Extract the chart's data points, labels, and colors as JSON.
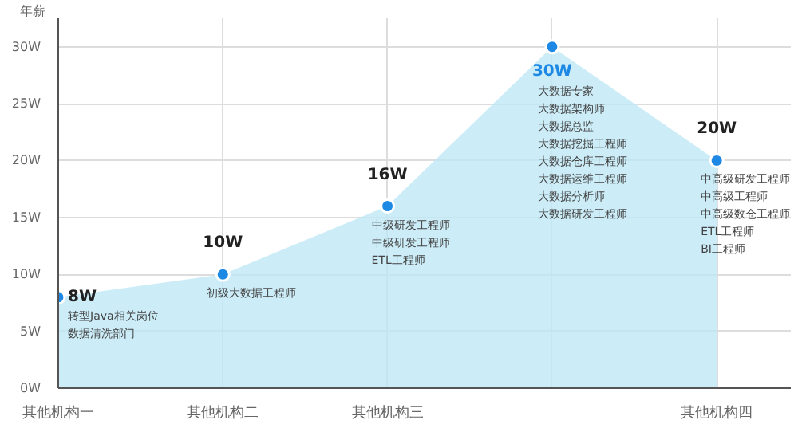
{
  "chart_data": {
    "type": "area",
    "ylabel": "年薪",
    "categories": [
      "其他机构一",
      "其他机构二",
      "其他机构三",
      null,
      "其他机构四"
    ],
    "series": [
      {
        "color": "#bfe8f6",
        "values": [
          8,
          10,
          16,
          30,
          20
        ],
        "value_labels": [
          "8W",
          "10W",
          "16W",
          "30W",
          "20W"
        ]
      }
    ],
    "marker": "circle",
    "ylim": [
      0,
      32.5
    ],
    "yticks": [
      {
        "value": 0,
        "label": "0W"
      },
      {
        "value": 5,
        "label": "5W"
      },
      {
        "value": 10,
        "label": "10W"
      },
      {
        "value": 15,
        "label": "15W"
      },
      {
        "value": 20,
        "label": "20W"
      },
      {
        "value": 25,
        "label": "25W"
      },
      {
        "value": 30,
        "label": "30W"
      }
    ],
    "grid": true,
    "annotations": [
      "转型Java相关岗位",
      "数据清洗部门",
      "初级大数据工程师",
      "中级研发工程师",
      "中级研发工程师",
      "ETL工程师",
      "大数据专家",
      "大数据架构师",
      "大数据总监",
      "大数据挖掘工程师",
      "大数据仓库工程师",
      "大数据运维工程师",
      "大数据分析师",
      "大数据研发工程师",
      "中高级研发工程师",
      "中高级工程师",
      "中高级数仓工程师",
      "ETL工程师",
      "BI工程师"
    ]
  }
}
